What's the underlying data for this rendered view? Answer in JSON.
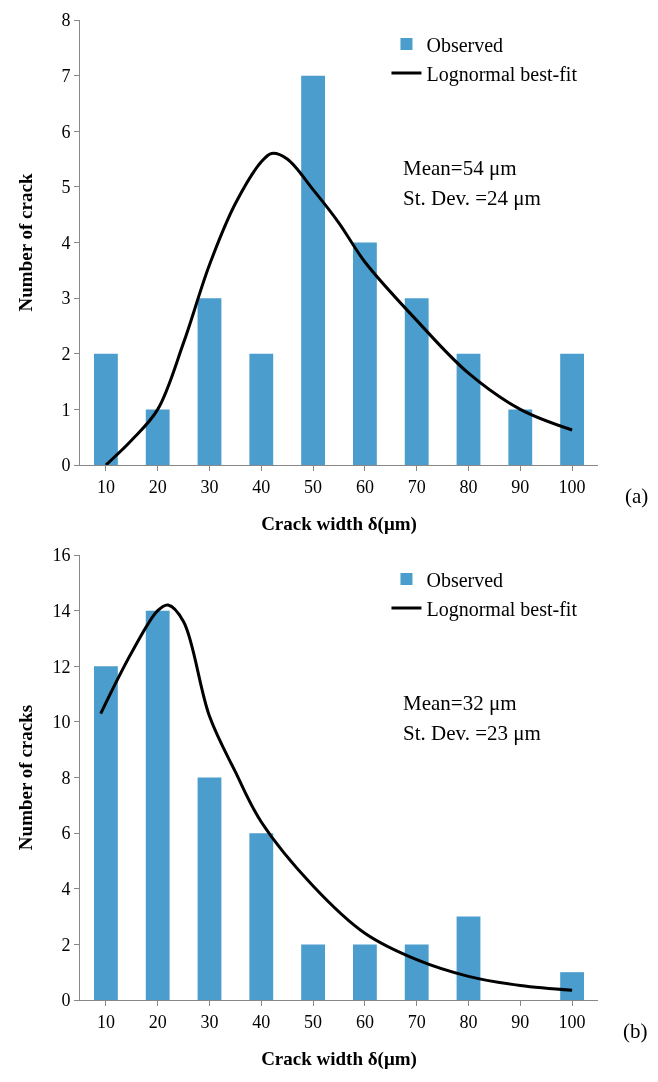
{
  "chart_data": [
    {
      "type": "bar",
      "xlabel": "Crack width δ(μm)",
      "ylabel": "Number of crack",
      "x": [
        10,
        20,
        30,
        40,
        50,
        60,
        70,
        80,
        90,
        100
      ],
      "xlim": [
        5,
        105
      ],
      "xticks": [
        10,
        20,
        30,
        40,
        50,
        60,
        70,
        80,
        90,
        100
      ],
      "ylim": [
        0,
        8
      ],
      "yticks": [
        0,
        1,
        2,
        3,
        4,
        5,
        6,
        7,
        8
      ],
      "grid": false,
      "legend": "top right",
      "series": [
        {
          "name": "Observed",
          "color": "#4a9dcc",
          "values": [
            2,
            1,
            3,
            2,
            7,
            4,
            3,
            2,
            1,
            2
          ]
        },
        {
          "name": "Lognormal best-fit",
          "type": "line",
          "color": "#000000",
          "x": [
            10,
            15,
            20,
            25,
            30,
            35,
            40,
            42,
            45,
            50,
            55,
            60,
            70,
            80,
            90,
            100
          ],
          "values": [
            0,
            0.45,
            1.0,
            2.2,
            3.6,
            4.7,
            5.45,
            5.6,
            5.5,
            4.95,
            4.35,
            3.65,
            2.6,
            1.65,
            1.0,
            0.63
          ]
        }
      ],
      "annotations": [
        "Mean=54 μm",
        "St. Dev. =24 μm",
        "(a)"
      ]
    },
    {
      "type": "bar",
      "xlabel": "Crack width δ(μm)",
      "ylabel": "Number of cracks",
      "x": [
        10,
        20,
        30,
        40,
        50,
        60,
        70,
        80,
        90,
        100
      ],
      "xlim": [
        5,
        105
      ],
      "xticks": [
        10,
        20,
        30,
        40,
        50,
        60,
        70,
        80,
        90,
        100
      ],
      "ylim": [
        0,
        16
      ],
      "yticks": [
        0,
        2,
        4,
        6,
        8,
        10,
        12,
        14,
        16
      ],
      "grid": false,
      "legend": "top right",
      "series": [
        {
          "name": "Observed",
          "color": "#4a9dcc",
          "values": [
            12,
            14,
            8,
            6,
            2,
            2,
            2,
            3,
            0,
            1
          ]
        },
        {
          "name": "Lognormal best-fit",
          "type": "line",
          "color": "#000000",
          "x": [
            9,
            15,
            20,
            22,
            25,
            30,
            35,
            40,
            50,
            60,
            70,
            80,
            90,
            100
          ],
          "values": [
            10.3,
            12.5,
            14.0,
            14.2,
            13.6,
            10.2,
            8.2,
            6.4,
            4.1,
            2.4,
            1.45,
            0.85,
            0.52,
            0.35
          ]
        }
      ],
      "annotations": [
        "Mean=32 μm",
        "St. Dev. =23 μm",
        "(b)"
      ]
    }
  ]
}
